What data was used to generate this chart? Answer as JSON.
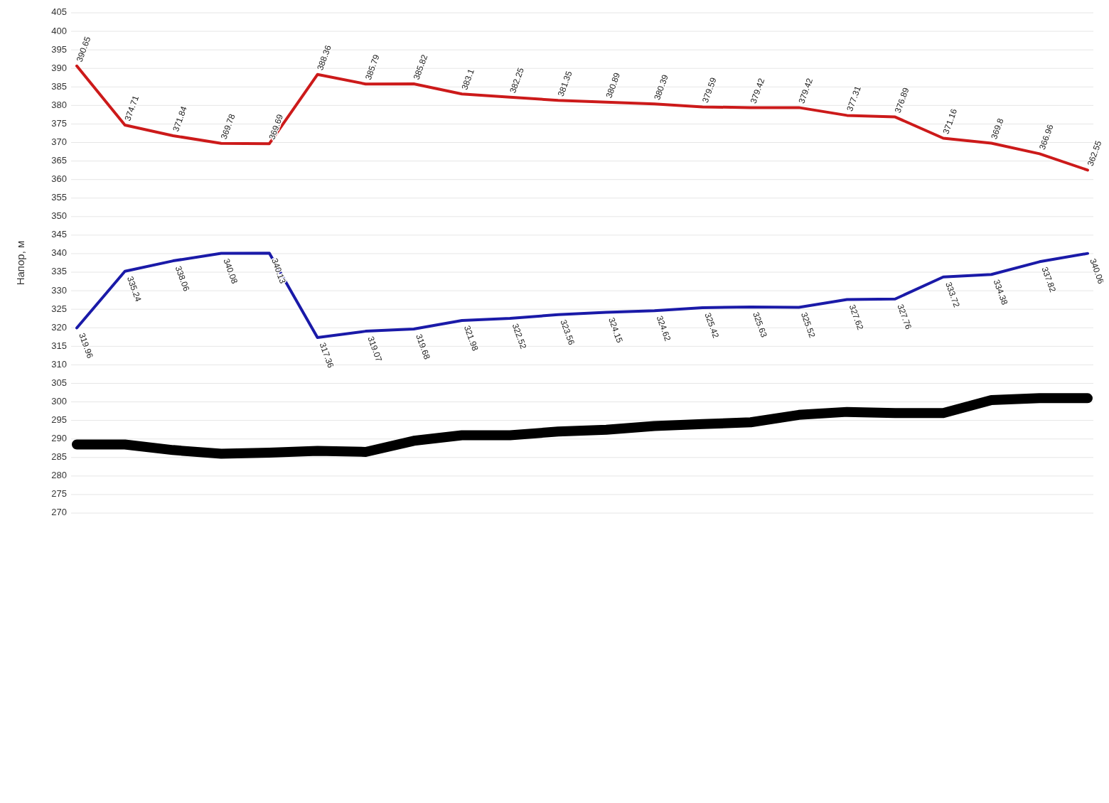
{
  "chart_data": {
    "type": "line",
    "ylabel": "Напор, м",
    "categories": [
      null,
      null,
      null,
      null,
      null,
      null,
      null,
      null,
      null,
      null,
      null,
      null,
      null,
      null,
      null,
      null,
      null,
      null,
      null,
      null,
      null,
      null
    ],
    "ylim": [
      270,
      405
    ],
    "yticks": [
      270,
      275,
      280,
      285,
      290,
      295,
      300,
      305,
      310,
      315,
      320,
      325,
      330,
      335,
      340,
      345,
      350,
      355,
      360,
      365,
      370,
      375,
      380,
      385,
      390,
      395,
      400,
      405
    ],
    "grid": "y",
    "line_style": "solid",
    "marker": "none",
    "series": [
      {
        "color": "#cc1a1a",
        "values": [
          390.65,
          374.71,
          371.84,
          369.78,
          369.69,
          388.36,
          385.79,
          385.82,
          383.1,
          382.25,
          381.35,
          380.89,
          380.39,
          379.59,
          379.42,
          379.42,
          377.31,
          376.89,
          371.16,
          369.8,
          366.96,
          362.55
        ],
        "value_labels": [
          "390.65",
          "374.71",
          "371.84",
          "369.78",
          "369.69",
          "388.36",
          "385.79",
          "385.82",
          "383.1",
          "382.25",
          "381.35",
          "380.89",
          "380.39",
          "379.59",
          "379.42",
          "379.42",
          "377.31",
          "376.89",
          "371.16",
          "369.8",
          "366.96",
          "362.55"
        ]
      },
      {
        "color": "#1a1aa8",
        "values": [
          319.96,
          335.24,
          338.06,
          340.08,
          340.13,
          317.36,
          319.07,
          319.68,
          321.98,
          322.52,
          323.56,
          324.15,
          324.62,
          325.42,
          325.63,
          325.52,
          327.62,
          327.76,
          333.72,
          334.38,
          337.82,
          340.06
        ],
        "value_labels": [
          "319.96",
          "335.24",
          "338.06",
          "340.08",
          "340.13",
          "317.36",
          "319.07",
          "319.68",
          "321.98",
          "322.52",
          "323.56",
          "324.15",
          "324.62",
          "325.42",
          "325.63",
          "325.52",
          "327.62",
          "327.76",
          "333.72",
          "334.38",
          "337.82",
          "340.06"
        ]
      },
      {
        "color": "#000000",
        "values": [
          288.5,
          288.5,
          287,
          286,
          286.3,
          286.8,
          286.5,
          289.5,
          291,
          291,
          292,
          292.5,
          293.5,
          294,
          294.5,
          296.5,
          297.3,
          297,
          297,
          300.5,
          301,
          301
        ]
      }
    ]
  }
}
